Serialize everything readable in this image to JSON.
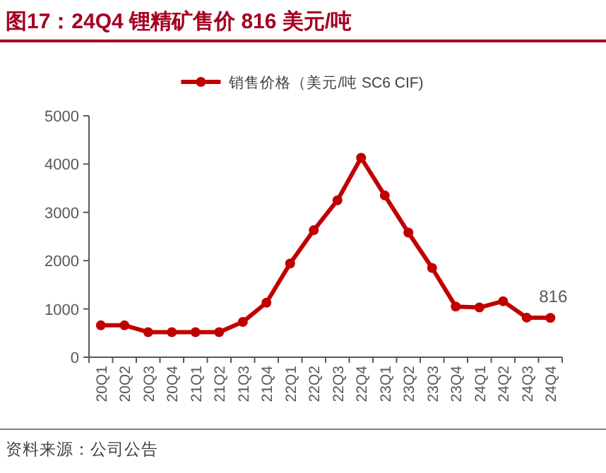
{
  "chart_data": {
    "type": "line",
    "title": "图17：24Q4 锂精矿售价 816 美元/吨",
    "categories": [
      "20Q1",
      "20Q2",
      "20Q3",
      "20Q4",
      "21Q1",
      "21Q2",
      "21Q3",
      "21Q4",
      "22Q1",
      "22Q2",
      "22Q3",
      "22Q4",
      "23Q1",
      "23Q2",
      "23Q3",
      "23Q4",
      "24Q1",
      "24Q2",
      "24Q3",
      "24Q4"
    ],
    "series": [
      {
        "name": "销售价格（美元/吨 SC6 CIF)",
        "color": "#c00000",
        "values": [
          660,
          660,
          520,
          520,
          520,
          520,
          730,
          1130,
          1940,
          2630,
          3250,
          4130,
          3350,
          2580,
          1850,
          1050,
          1030,
          1160,
          820,
          816
        ],
        "value_labels": [
          null,
          null,
          null,
          null,
          null,
          null,
          null,
          null,
          null,
          null,
          null,
          null,
          null,
          null,
          null,
          null,
          null,
          null,
          null,
          "816"
        ]
      }
    ],
    "ylim": [
      0,
      5000
    ],
    "yticks": [
      0,
      1000,
      2000,
      3000,
      4000,
      5000
    ],
    "legend": "top",
    "marker": "circle",
    "line_style": "solid",
    "annotations": [
      "资料来源：公司公告"
    ]
  }
}
